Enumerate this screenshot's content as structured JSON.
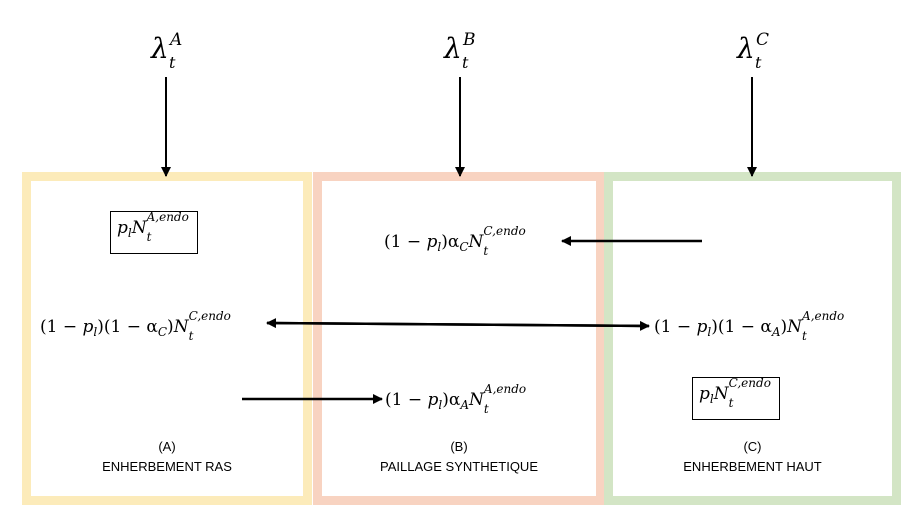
{
  "inputs": [
    {
      "symbol": "λ",
      "superscript": "A",
      "subscript": "t"
    },
    {
      "symbol": "λ",
      "superscript": "B",
      "subscript": "t"
    },
    {
      "symbol": "λ",
      "superscript": "C",
      "subscript": "t"
    }
  ],
  "zones": {
    "a": {
      "letter": "(A)",
      "name": "ENHERBEMENT RAS",
      "color": "#FCEBBA"
    },
    "b": {
      "letter": "(B)",
      "name": "PAILLAGE SYNTHETIQUE",
      "color": "#F8D3C1"
    },
    "c": {
      "letter": "(C)",
      "name": "ENHERBEMENT HAUT",
      "color": "#D3E5C5"
    }
  },
  "expressions": {
    "a_local": {
      "coef": "p",
      "coef_sub": "l",
      "var": "N",
      "sup": "A,endo",
      "sub": "t"
    },
    "b_from_c": {
      "prefix": "(1 − ",
      "p_sub": "l",
      "mid": ")α",
      "alpha_sub": "C",
      "var": "N",
      "sup": "C,endo",
      "sub": "t"
    },
    "a_c_exchange_left": {
      "prefix": "(1 − ",
      "p_sub": "l",
      "mid": ")(1 − α",
      "alpha_sub": "C",
      "end": ")",
      "var": "N",
      "sup": "C,endo",
      "sub": "t"
    },
    "a_c_exchange_right": {
      "prefix": "(1 − ",
      "p_sub": "l",
      "mid": ")(1 − α",
      "alpha_sub": "A",
      "end": ")",
      "var": "N",
      "sup": "A,endo",
      "sub": "t"
    },
    "b_from_a": {
      "prefix": "(1 − ",
      "p_sub": "l",
      "mid": ")α",
      "alpha_sub": "A",
      "var": "N",
      "sup": "A,endo",
      "sub": "t"
    },
    "c_local": {
      "coef": "p",
      "coef_sub": "l",
      "var": "N",
      "sup": "C,endo",
      "sub": "t"
    }
  }
}
